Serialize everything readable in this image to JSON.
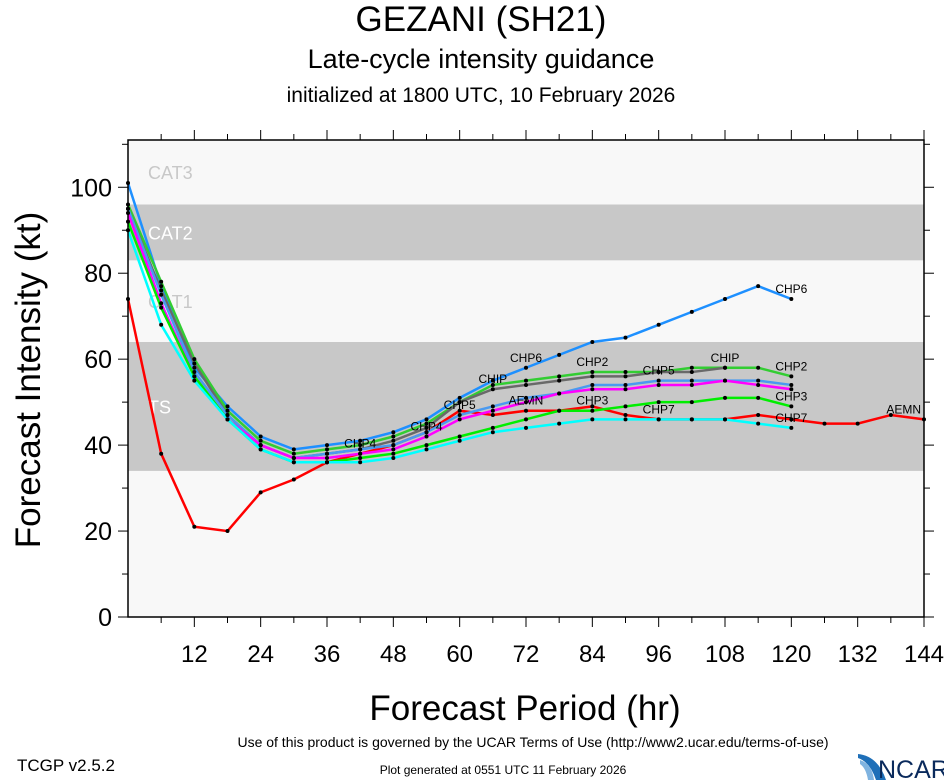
{
  "header": {
    "title": "GEZANI (SH21)",
    "subtitle": "Late-cycle intensity guidance",
    "initialized": "initialized at 1800 UTC, 10 February 2026"
  },
  "footer": {
    "terms": "Use of this product is governed by the UCAR Terms of Use (http://www2.ucar.edu/terms-of-use)",
    "generated": "Plot generated at 0551 UTC   11 February 2026",
    "version": "TCGP v2.5.2",
    "logo": "NCAR"
  },
  "chart_data": {
    "type": "line",
    "xlabel": "Forecast Period (hr)",
    "ylabel": "Forecast Intensity (kt)",
    "xlim": [
      0,
      144
    ],
    "ylim": [
      0,
      111
    ],
    "xticks": [
      12,
      24,
      36,
      48,
      60,
      72,
      84,
      96,
      108,
      120,
      132,
      144
    ],
    "yticks": [
      0,
      20,
      40,
      60,
      80,
      100
    ],
    "bands": [
      {
        "label": "TS",
        "from": 34,
        "to": 64,
        "color": "#c8c8c8"
      },
      {
        "label": "CAT1",
        "from": 64,
        "to": 83,
        "color": "#f8f8f8"
      },
      {
        "label": "CAT2",
        "from": 83,
        "to": 96,
        "color": "#c8c8c8"
      },
      {
        "label": "CAT3",
        "from": 96,
        "to": 111,
        "color": "#f8f8f8"
      }
    ],
    "series": [
      {
        "name": "AEMN",
        "color": "#ff0000",
        "x": [
          0,
          6,
          12,
          18,
          24,
          30,
          36,
          42,
          48,
          54,
          60,
          66,
          72,
          78,
          84,
          90,
          96,
          102,
          108,
          114,
          120,
          126,
          132,
          138,
          144
        ],
        "y": [
          74,
          38,
          21,
          20,
          29,
          32,
          36,
          38,
          40,
          43,
          48,
          47,
          48,
          48,
          49,
          47,
          46,
          46,
          46,
          47,
          46,
          45,
          45,
          47,
          46
        ]
      },
      {
        "name": "CHP6",
        "color": "#1e90ff",
        "x": [
          0,
          6,
          12,
          18,
          24,
          30,
          36,
          42,
          48,
          54,
          60,
          66,
          72,
          78,
          84,
          90,
          96,
          102,
          108,
          114,
          120
        ],
        "y": [
          101,
          77,
          58,
          49,
          42,
          39,
          40,
          41,
          43,
          46,
          51,
          55,
          58,
          61,
          64,
          65,
          68,
          71,
          74,
          77,
          74
        ]
      },
      {
        "name": "CHP2",
        "color": "#32cd32",
        "x": [
          0,
          6,
          12,
          18,
          24,
          30,
          36,
          42,
          48,
          54,
          60,
          66,
          72,
          78,
          84,
          90,
          96,
          102,
          108,
          114,
          120
        ],
        "y": [
          96,
          78,
          60,
          48,
          41,
          38,
          39,
          40,
          42,
          45,
          50,
          54,
          55,
          56,
          57,
          57,
          57,
          58,
          58,
          58,
          56
        ]
      },
      {
        "name": "CHIP",
        "color": "#696969",
        "x": [
          0,
          6,
          12,
          18,
          24,
          30,
          36,
          42,
          48,
          54,
          60,
          66,
          72,
          78,
          84,
          90,
          96,
          102,
          108
        ],
        "y": [
          95,
          76,
          59,
          47,
          40,
          37,
          38,
          39,
          41,
          44,
          50,
          53,
          54,
          55,
          56,
          56,
          57,
          57,
          58
        ]
      },
      {
        "name": "CHP5",
        "color": "#4a9af0",
        "x": [
          0,
          6,
          12,
          18,
          24,
          30,
          36,
          42,
          48,
          54,
          60,
          66,
          72,
          78,
          84,
          90,
          96,
          102,
          108,
          114,
          120
        ],
        "y": [
          95,
          75,
          57,
          47,
          40,
          37,
          38,
          39,
          40,
          43,
          47,
          49,
          51,
          52,
          54,
          54,
          55,
          55,
          55,
          55,
          54
        ]
      },
      {
        "name": "CHP4",
        "color": "#ff00ff",
        "x": [
          0,
          6,
          12,
          18,
          24,
          30,
          36,
          42,
          48,
          54,
          60,
          66,
          72,
          78,
          84,
          90,
          96,
          102,
          108,
          114,
          120
        ],
        "y": [
          94,
          73,
          56,
          46,
          40,
          37,
          37,
          38,
          39,
          42,
          46,
          48,
          50,
          52,
          53,
          53,
          54,
          54,
          55,
          54,
          53
        ]
      },
      {
        "name": "CHP3",
        "color": "#00ee00",
        "x": [
          0,
          6,
          12,
          18,
          24,
          30,
          36,
          42,
          48,
          54,
          60,
          66,
          72,
          78,
          84,
          90,
          96,
          102,
          108,
          114,
          120
        ],
        "y": [
          92,
          72,
          56,
          46,
          39,
          36,
          36,
          37,
          38,
          40,
          42,
          44,
          46,
          48,
          48,
          49,
          50,
          50,
          51,
          51,
          49
        ]
      },
      {
        "name": "CHP7",
        "color": "#00ffff",
        "x": [
          0,
          6,
          12,
          18,
          24,
          30,
          36,
          42,
          48,
          54,
          60,
          66,
          72,
          78,
          84,
          90,
          96,
          102,
          108,
          114,
          120
        ],
        "y": [
          90,
          68,
          55,
          46,
          39,
          36,
          36,
          36,
          37,
          39,
          41,
          43,
          44,
          45,
          46,
          46,
          46,
          46,
          46,
          45,
          44
        ]
      }
    ]
  }
}
